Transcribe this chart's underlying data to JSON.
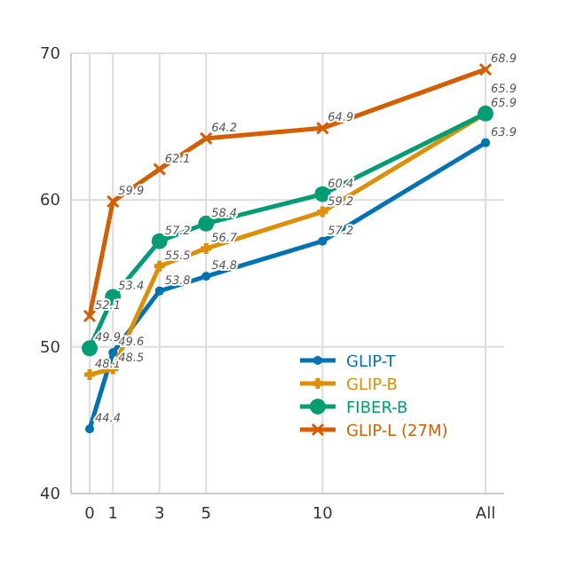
{
  "chart_data": {
    "type": "line",
    "x": [
      0,
      1,
      3,
      5,
      10,
      17
    ],
    "xlim": [
      -0.8,
      17.8
    ],
    "xticks": [
      0,
      1,
      3,
      5,
      10,
      {
        "value": 17,
        "label": "All"
      }
    ],
    "ylim": [
      40,
      70
    ],
    "yticks": [
      40,
      50,
      60,
      70
    ],
    "grid": true,
    "legend": "bottom right",
    "data_labels": true,
    "series": [
      {
        "name": "GLIP-T",
        "color": "#0173b2",
        "marker": "circle",
        "values": [
          44.4,
          49.6,
          53.8,
          54.8,
          57.2,
          63.9
        ]
      },
      {
        "name": "GLIP-B",
        "color": "#de8f05",
        "marker": "cross",
        "values": [
          48.1,
          48.5,
          55.5,
          56.7,
          59.2,
          65.9
        ]
      },
      {
        "name": "FIBER-B",
        "color": "#029e73",
        "marker": "circle",
        "values": [
          49.9,
          53.4,
          57.2,
          58.4,
          60.4,
          65.9
        ]
      },
      {
        "name": "GLIP-L (27M)",
        "color": "#d55e00",
        "marker": "x",
        "values": [
          52.1,
          59.9,
          62.1,
          64.2,
          64.9,
          68.9
        ]
      }
    ]
  }
}
